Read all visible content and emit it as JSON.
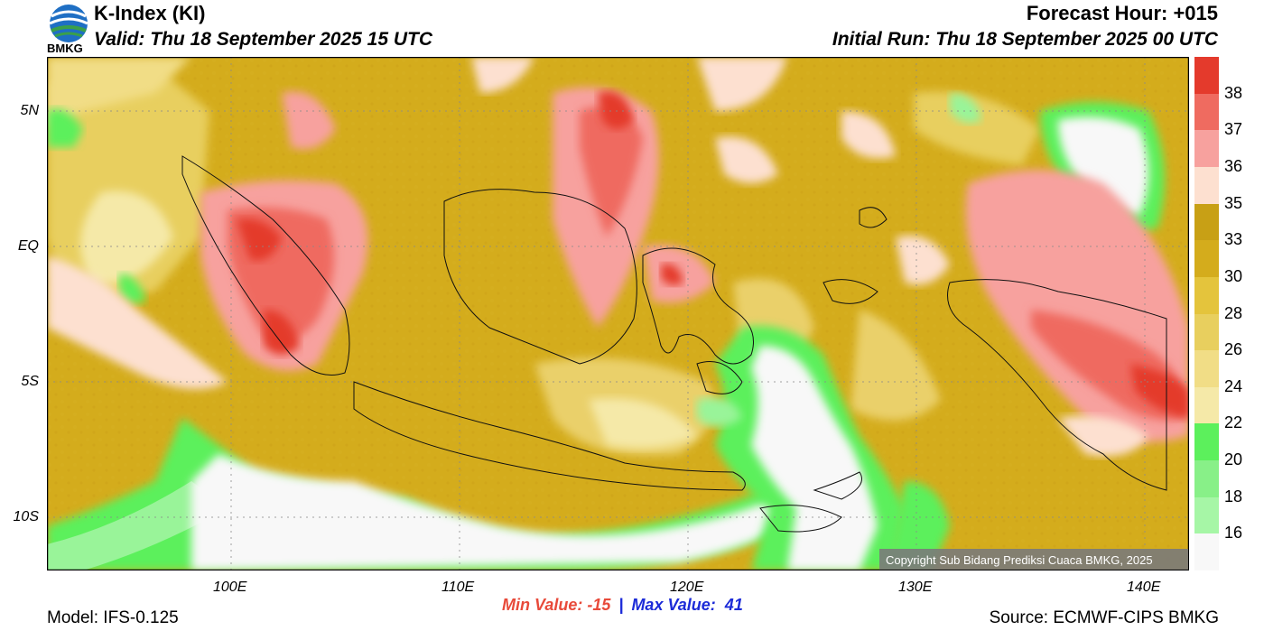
{
  "header": {
    "title": "K-Index (KI)",
    "valid": "Valid: Thu 18 September 2025 15 UTC",
    "forecast_hour": "Forecast Hour: +015",
    "initial_run": "Initial Run: Thu 18 September 2025 00 UTC"
  },
  "logo": {
    "text": "BMKG"
  },
  "map": {
    "lat_labels": [
      "5N",
      "EQ",
      "5S",
      "10S"
    ],
    "lon_labels": [
      "100E",
      "110E",
      "120E",
      "130E",
      "140E"
    ],
    "copyright": "Copyright Sub Bidang Prediksi Cuaca BMKG, 2025",
    "colors": {
      "white": "#f8f8f8",
      "green_light": "#99f499",
      "green": "#5cf05c",
      "yellow_light": "#f6e59a",
      "yellow": "#e7cd66",
      "gold": "#d4ac1c",
      "gold_dark": "#c8a015",
      "pink_light": "#fde0d0",
      "pink": "#f7a19e",
      "red_light": "#ef6b60",
      "red": "#e43a2c"
    }
  },
  "colorbar": {
    "labels": [
      "38",
      "37",
      "36",
      "35",
      "33",
      "30",
      "28",
      "26",
      "24",
      "22",
      "20",
      "18",
      "16"
    ],
    "colors": [
      "#e43a2c",
      "#ef6b60",
      "#f7a19e",
      "#fde0d0",
      "#c8a015",
      "#d4ac1c",
      "#e4c43c",
      "#e8cf5e",
      "#f1dd86",
      "#f5e9a8",
      "#5cf05c",
      "#88f088",
      "#a6f6a6",
      "#f8f8f8"
    ]
  },
  "stats": {
    "min": "Min Value: -15",
    "sep": "|",
    "max": "Max Value:  41"
  },
  "footer": {
    "model": "Model: IFS-0.125",
    "source": "Source: ECMWF-CIPS BMKG"
  }
}
